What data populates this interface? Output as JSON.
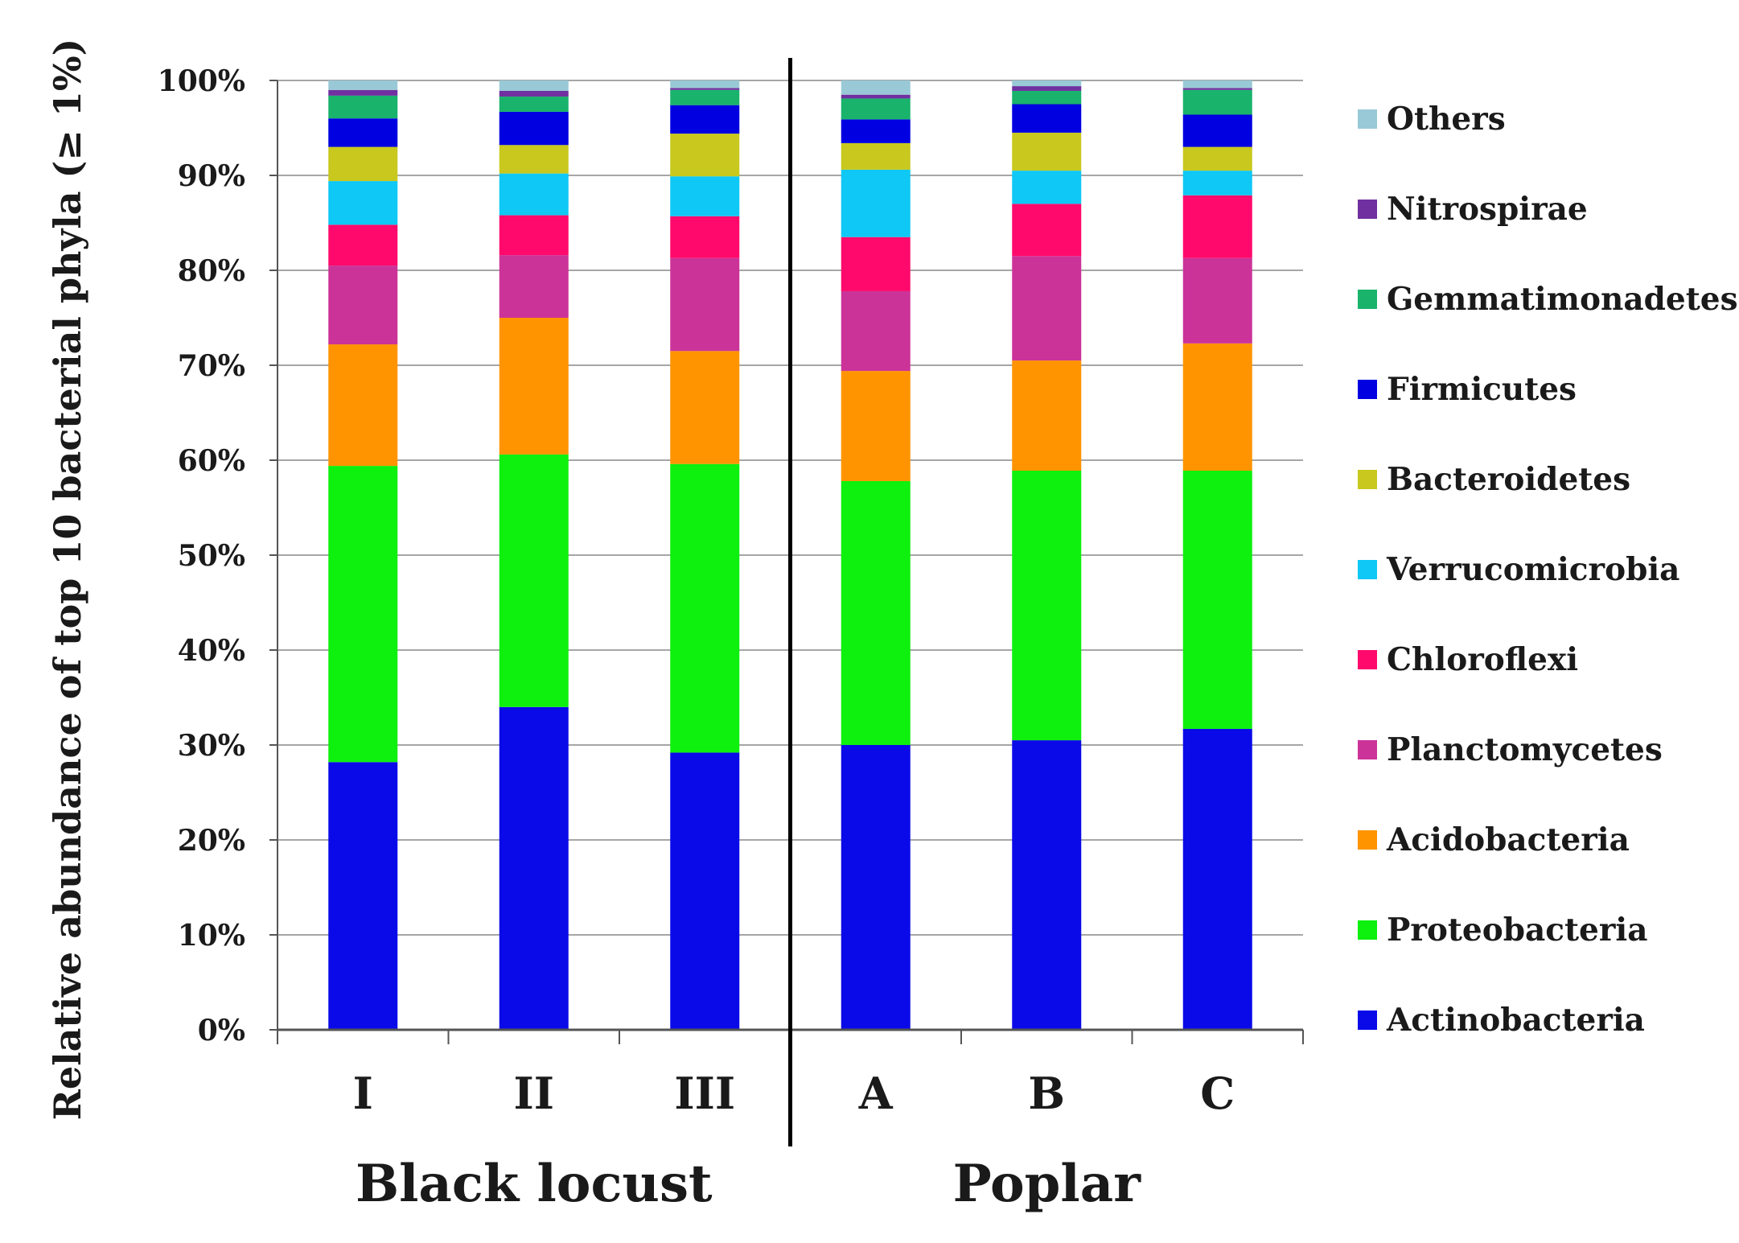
{
  "chart_data": {
    "type": "bar",
    "stacked": true,
    "ylabel": "Relative abundance of top 10 bacterial phyla (≥ 1%)",
    "ylim": [
      0,
      100
    ],
    "yticks": [
      "0%",
      "10%",
      "20%",
      "30%",
      "40%",
      "50%",
      "60%",
      "70%",
      "80%",
      "90%",
      "100%"
    ],
    "categories": [
      "I",
      "II",
      "III",
      "A",
      "B",
      "C"
    ],
    "groups": [
      {
        "label": "Black locust",
        "categories": [
          "I",
          "II",
          "III"
        ]
      },
      {
        "label": "Poplar",
        "categories": [
          "A",
          "B",
          "C"
        ]
      }
    ],
    "legend_position": "right",
    "series": [
      {
        "name": "Actinobacteria",
        "color": "#0a0ae8",
        "values": [
          28.2,
          34.0,
          29.2,
          30.0,
          30.5,
          31.7
        ]
      },
      {
        "name": "Proteobacteria",
        "color": "#0ef00e",
        "values": [
          31.2,
          26.6,
          30.4,
          27.8,
          28.4,
          27.2
        ]
      },
      {
        "name": "Acidobacteria",
        "color": "#ff9400",
        "values": [
          12.8,
          14.4,
          11.9,
          11.6,
          11.6,
          13.4
        ]
      },
      {
        "name": "Planctomycetes",
        "color": "#cc3399",
        "values": [
          8.3,
          6.6,
          9.8,
          8.4,
          11.0,
          9.0
        ]
      },
      {
        "name": "Chloroflexi",
        "color": "#ff0a6c",
        "values": [
          4.3,
          4.2,
          4.4,
          5.7,
          5.5,
          6.6
        ]
      },
      {
        "name": "Verrucomicrobia",
        "color": "#0fc8f5",
        "values": [
          4.6,
          4.4,
          4.2,
          7.1,
          3.5,
          2.6
        ]
      },
      {
        "name": "Bacteroidetes",
        "color": "#c8c81e",
        "values": [
          3.6,
          3.0,
          4.5,
          2.8,
          4.0,
          2.5
        ]
      },
      {
        "name": "Firmicutes",
        "color": "#0000e0",
        "values": [
          3.0,
          3.5,
          3.0,
          2.5,
          3.0,
          3.4
        ]
      },
      {
        "name": "Gemmatimonadetes",
        "color": "#19b36b",
        "values": [
          2.4,
          1.6,
          1.6,
          2.2,
          1.4,
          2.6
        ]
      },
      {
        "name": "Nitrospirae",
        "color": "#7030a0",
        "values": [
          0.6,
          0.6,
          0.2,
          0.4,
          0.5,
          0.2
        ]
      },
      {
        "name": "Others",
        "color": "#99c9d6",
        "values": [
          1.0,
          1.1,
          0.8,
          1.5,
          0.6,
          0.8
        ]
      }
    ]
  }
}
